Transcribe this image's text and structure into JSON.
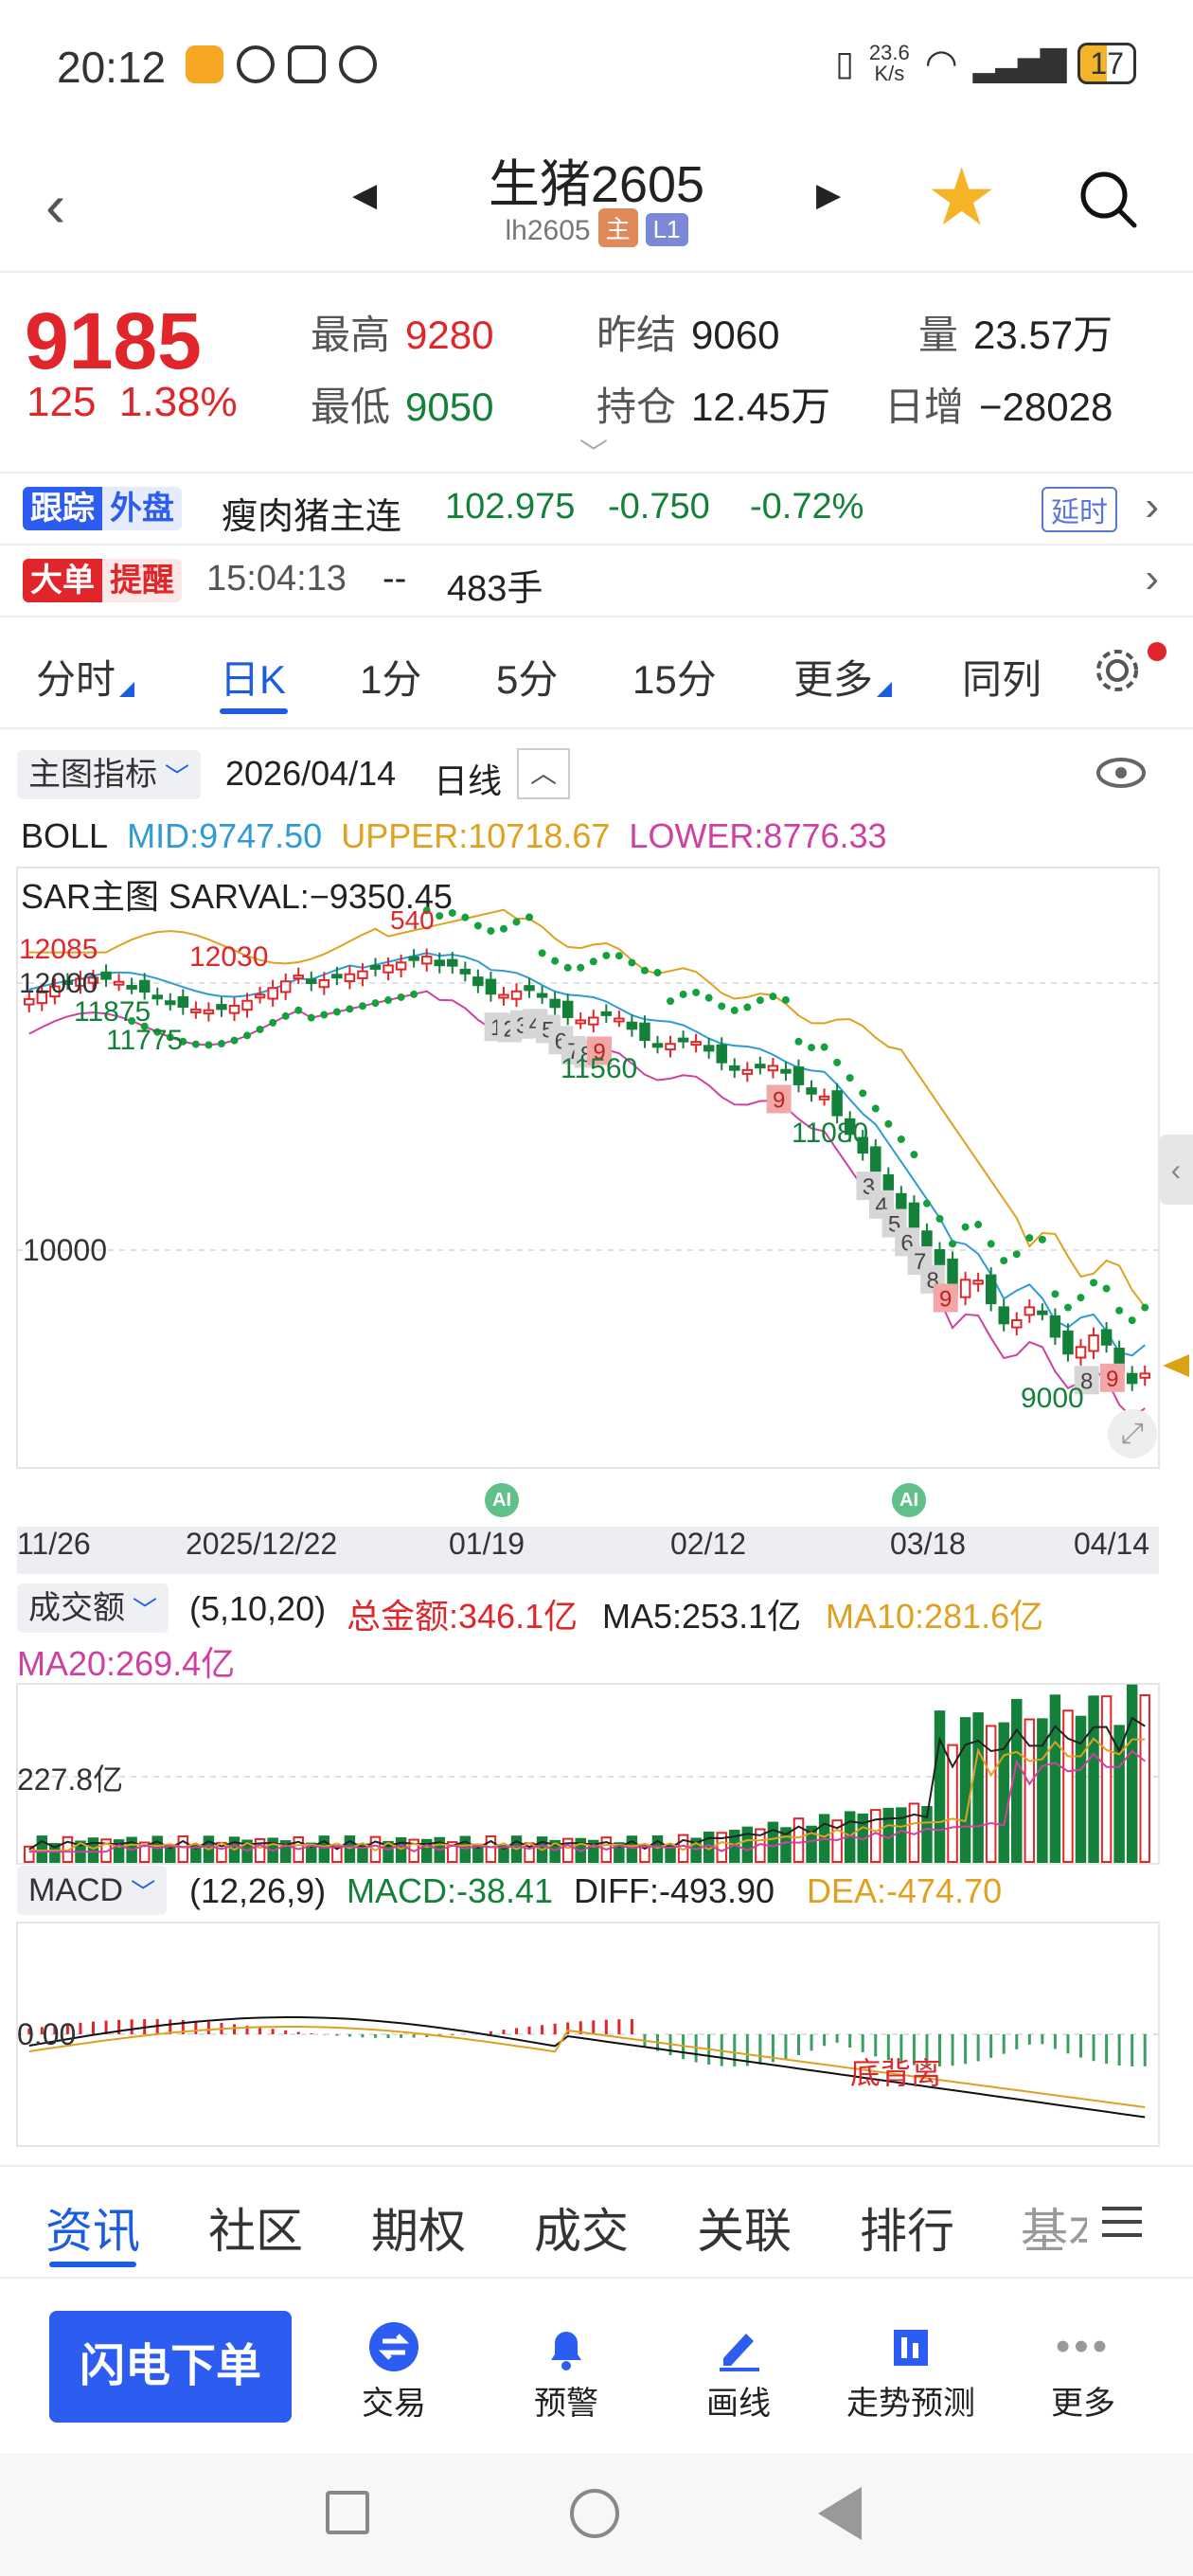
{
  "status_bar": {
    "time": "20:12",
    "net_speed": "23.6\nK/s",
    "battery": "17"
  },
  "header": {
    "title": "生猪2605",
    "code": "lh2605",
    "badge_main": "主",
    "badge_level": "L1"
  },
  "quote": {
    "price": "9185",
    "change": "125",
    "change_pct": "1.38%",
    "high_label": "最高",
    "high": "9280",
    "low_label": "最低",
    "low": "9050",
    "prev_settle_label": "昨结",
    "prev_settle": "9060",
    "open_int_label": "持仓",
    "open_int": "12.45万",
    "volume_label": "量",
    "volume": "23.57万",
    "daily_inc_label": "日增",
    "daily_inc": "−28028"
  },
  "external": {
    "tag_a": "跟踪",
    "tag_b": "外盘",
    "name": "瘦肉猪主连",
    "price": "102.975",
    "change": "-0.750",
    "pct": "-0.72%",
    "delay": "延时"
  },
  "big_order": {
    "tag_a": "大单",
    "tag_b": "提醒",
    "time": "15:04:13",
    "dir": "--",
    "qty": "483手"
  },
  "period_tabs": [
    {
      "label": "分时"
    },
    {
      "label": "日K"
    },
    {
      "label": "1分"
    },
    {
      "label": "5分"
    },
    {
      "label": "15分"
    },
    {
      "label": "更多"
    },
    {
      "label": "同列"
    }
  ],
  "chart_header": {
    "indicator_select": "主图指标",
    "date": "2026/04/14",
    "period": "日线"
  },
  "boll": {
    "name": "BOLL",
    "mid": "MID:9747.50",
    "upper": "UPPER:10718.67",
    "lower": "LOWER:8776.33"
  },
  "sar": {
    "text": "SAR主图  SARVAL:−9350.45"
  },
  "price_labels": {
    "p12085": "12085",
    "p12030": "12030",
    "p12000": "12000",
    "p11875": "11875",
    "p11775": "11775",
    "p11560": "11560",
    "p11080": "11080",
    "p10000": "10000",
    "p9000": "9000",
    "hi_partial": "540"
  },
  "ai_badge": "AI",
  "x_axis": [
    "11/26",
    "2025/12/22",
    "01/19",
    "02/12",
    "03/18",
    "04/14"
  ],
  "volume_header": {
    "select": "成交额",
    "params": "(5,10,20)",
    "total": "总金额:346.1亿",
    "ma5": "MA5:253.1亿",
    "ma10": "MA10:281.6亿",
    "ma20": "MA20:269.4亿",
    "level": "227.8亿"
  },
  "macd_header": {
    "select": "MACD",
    "params": "(12,26,9)",
    "macd": "MACD:-38.41",
    "diff": "DIFF:-493.90",
    "dea": "DEA:-474.70",
    "zero": "0.00",
    "divergence": "底背离"
  },
  "bottom_tabs": [
    {
      "label": "资讯"
    },
    {
      "label": "社区"
    },
    {
      "label": "期权"
    },
    {
      "label": "成交"
    },
    {
      "label": "关联"
    },
    {
      "label": "排行"
    },
    {
      "label": "基本"
    }
  ],
  "actions": {
    "flash_order": "闪电下单",
    "trade": "交易",
    "alert": "预警",
    "draw": "画线",
    "forecast": "走势预测",
    "more": "更多"
  },
  "colors": {
    "up": "#e0262a",
    "down": "#14813a",
    "accent": "#1a5de0",
    "mid": "#2f9bd6",
    "upper": "#e0a020",
    "lower": "#d040a0"
  }
}
